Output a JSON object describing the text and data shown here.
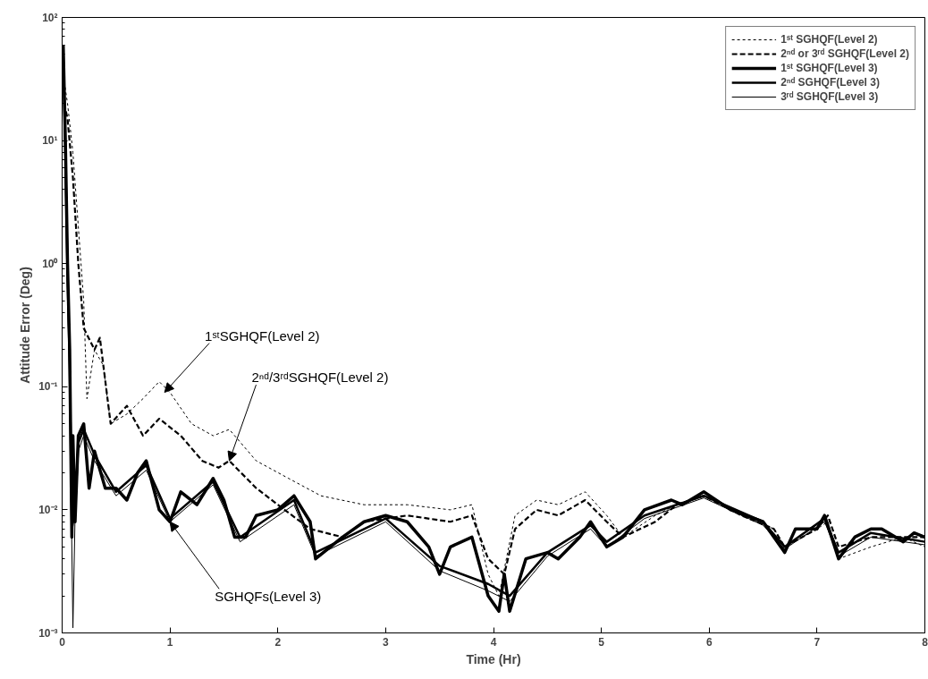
{
  "chart_data": {
    "type": "line",
    "xlabel": "Time (Hr)",
    "ylabel": "Attitude Error (Deg)",
    "log": "y",
    "grid": false,
    "legend": "top right",
    "marker": "none",
    "xlim": [
      0,
      8
    ],
    "xticks": [
      0,
      1,
      2,
      3,
      4,
      5,
      6,
      7,
      8
    ],
    "ylim": [
      0.001,
      100
    ],
    "yticks": [
      {
        "value": 0.001,
        "label": "10⁻³"
      },
      {
        "value": 0.01,
        "label": "10⁻²"
      },
      {
        "value": 0.1,
        "label": "10⁻¹"
      },
      {
        "value": 1,
        "label": "10⁰"
      },
      {
        "value": 10,
        "label": "10¹"
      },
      {
        "value": 100,
        "label": "10²"
      }
    ],
    "series": [
      {
        "name": "1ˢᵗ SGHQF(Level 2)",
        "color": "#000000",
        "line_style": "dotted",
        "x": [
          0.02,
          0.05,
          0.1,
          0.15,
          0.2,
          0.23,
          0.3,
          0.38,
          0.45,
          0.6,
          0.75,
          0.9,
          1.0,
          1.2,
          1.4,
          1.55,
          1.8,
          2.1,
          2.4,
          2.8,
          3.2,
          3.6,
          3.8,
          3.95,
          4.05,
          4.2,
          4.4,
          4.6,
          4.85,
          5.05,
          5.2,
          5.5,
          5.7,
          5.95,
          6.3,
          6.6,
          6.7,
          7.0,
          7.1,
          7.2,
          7.5,
          7.8,
          8.0
        ],
        "values": [
          30,
          20,
          8,
          2,
          0.5,
          0.08,
          0.2,
          0.15,
          0.05,
          0.06,
          0.08,
          0.11,
          0.09,
          0.05,
          0.04,
          0.045,
          0.025,
          0.018,
          0.013,
          0.011,
          0.011,
          0.01,
          0.011,
          0.003,
          0.002,
          0.009,
          0.012,
          0.011,
          0.014,
          0.009,
          0.006,
          0.009,
          0.011,
          0.013,
          0.009,
          0.007,
          0.005,
          0.007,
          0.008,
          0.004,
          0.005,
          0.006,
          0.005
        ]
      },
      {
        "name": "2ⁿᵈ or 3ʳᵈ SGHQF(Level 2)",
        "color": "#000000",
        "line_style": "dashed",
        "x": [
          0.02,
          0.05,
          0.1,
          0.15,
          0.2,
          0.3,
          0.35,
          0.45,
          0.6,
          0.75,
          0.9,
          1.1,
          1.3,
          1.45,
          1.55,
          1.8,
          2.0,
          2.3,
          2.6,
          2.8,
          3.2,
          3.6,
          3.8,
          3.95,
          4.1,
          4.2,
          4.4,
          4.6,
          4.85,
          5.05,
          5.2,
          5.5,
          5.7,
          5.95,
          6.3,
          6.6,
          6.7,
          7.0,
          7.1,
          7.2,
          7.5,
          7.8,
          8.0
        ],
        "values": [
          20,
          15,
          5,
          1,
          0.3,
          0.2,
          0.25,
          0.05,
          0.07,
          0.04,
          0.055,
          0.04,
          0.025,
          0.022,
          0.025,
          0.015,
          0.011,
          0.007,
          0.006,
          0.008,
          0.009,
          0.008,
          0.009,
          0.004,
          0.003,
          0.007,
          0.01,
          0.009,
          0.012,
          0.008,
          0.006,
          0.008,
          0.011,
          0.013,
          0.009,
          0.007,
          0.005,
          0.007,
          0.009,
          0.005,
          0.006,
          0.006,
          0.006
        ]
      },
      {
        "name": "1ˢᵗ SGHQF(Level 3)",
        "color": "#000000",
        "line_style": "solid",
        "x": [
          0.01,
          0.03,
          0.05,
          0.07,
          0.09,
          0.1,
          0.12,
          0.15,
          0.2,
          0.25,
          0.3,
          0.4,
          0.5,
          0.6,
          0.7,
          0.78,
          0.9,
          1.0,
          1.1,
          1.25,
          1.4,
          1.5,
          1.6,
          1.7,
          1.8,
          2.0,
          2.15,
          2.3,
          2.35,
          2.6,
          2.8,
          3.0,
          3.2,
          3.4,
          3.5,
          3.6,
          3.8,
          3.95,
          4.05,
          4.1,
          4.15,
          4.3,
          4.5,
          4.6,
          4.8,
          4.9,
          5.05,
          5.2,
          5.4,
          5.65,
          5.75,
          5.95,
          6.2,
          6.5,
          6.7,
          6.8,
          7.0,
          7.07,
          7.2,
          7.35,
          7.5,
          7.6,
          7.8,
          7.9,
          8.0
        ],
        "values": [
          60,
          10,
          1,
          0.2,
          0.006,
          0.04,
          0.008,
          0.04,
          0.05,
          0.015,
          0.03,
          0.015,
          0.015,
          0.012,
          0.02,
          0.025,
          0.01,
          0.008,
          0.014,
          0.011,
          0.018,
          0.012,
          0.006,
          0.006,
          0.009,
          0.01,
          0.013,
          0.008,
          0.004,
          0.006,
          0.008,
          0.009,
          0.008,
          0.005,
          0.003,
          0.005,
          0.006,
          0.002,
          0.0015,
          0.003,
          0.0015,
          0.004,
          0.0045,
          0.004,
          0.006,
          0.008,
          0.005,
          0.006,
          0.01,
          0.012,
          0.011,
          0.014,
          0.01,
          0.008,
          0.0045,
          0.007,
          0.007,
          0.009,
          0.004,
          0.006,
          0.007,
          0.007,
          0.0055,
          0.0065,
          0.006
        ]
      },
      {
        "name": "2ⁿᵈ SGHQF(Level 3)",
        "color": "#000000",
        "line_style": "solid",
        "x": [
          0.01,
          0.03,
          0.05,
          0.07,
          0.09,
          0.12,
          0.15,
          0.2,
          0.3,
          0.5,
          0.78,
          1.0,
          1.4,
          1.65,
          2.15,
          2.35,
          3.0,
          3.5,
          3.95,
          4.15,
          4.5,
          4.9,
          5.05,
          5.4,
          5.95,
          6.5,
          6.7,
          7.07,
          7.2,
          7.5,
          8.0
        ],
        "values": [
          50,
          8,
          0.8,
          0.15,
          0.007,
          0.01,
          0.035,
          0.045,
          0.028,
          0.014,
          0.023,
          0.0085,
          0.017,
          0.006,
          0.012,
          0.0045,
          0.0085,
          0.0035,
          0.0025,
          0.002,
          0.0045,
          0.0075,
          0.0055,
          0.009,
          0.013,
          0.008,
          0.005,
          0.0085,
          0.0045,
          0.0065,
          0.0055
        ]
      },
      {
        "name": "3ʳᵈ SGHQF(Level 3)",
        "color": "#000000",
        "line_style": "solid",
        "x": [
          0.01,
          0.03,
          0.05,
          0.07,
          0.1,
          0.12,
          0.15,
          0.2,
          0.3,
          0.5,
          0.78,
          1.0,
          1.4,
          1.65,
          2.15,
          2.35,
          3.0,
          3.5,
          3.95,
          4.15,
          4.5,
          4.9,
          5.05,
          5.4,
          5.95,
          6.5,
          6.7,
          7.07,
          7.2,
          7.5,
          8.0
        ],
        "values": [
          40,
          6,
          0.6,
          0.1,
          0.0011,
          0.009,
          0.03,
          0.04,
          0.025,
          0.013,
          0.021,
          0.008,
          0.016,
          0.0055,
          0.011,
          0.0042,
          0.008,
          0.0032,
          0.0022,
          0.0018,
          0.0042,
          0.007,
          0.005,
          0.0085,
          0.0125,
          0.0075,
          0.0048,
          0.008,
          0.0042,
          0.006,
          0.0052
        ]
      }
    ],
    "annotations": [
      {
        "text": "1ˢᵗSGHQF(Level 2)",
        "x": 0.95,
        "y": 0.09
      },
      {
        "text": "2ⁿᵈ/3ʳᵈSGHQF(Level 2)",
        "x": 1.55,
        "y": 0.025
      },
      {
        "text": "SGHQFs(Level 3)",
        "x": 1.0,
        "y": 0.008
      }
    ]
  }
}
